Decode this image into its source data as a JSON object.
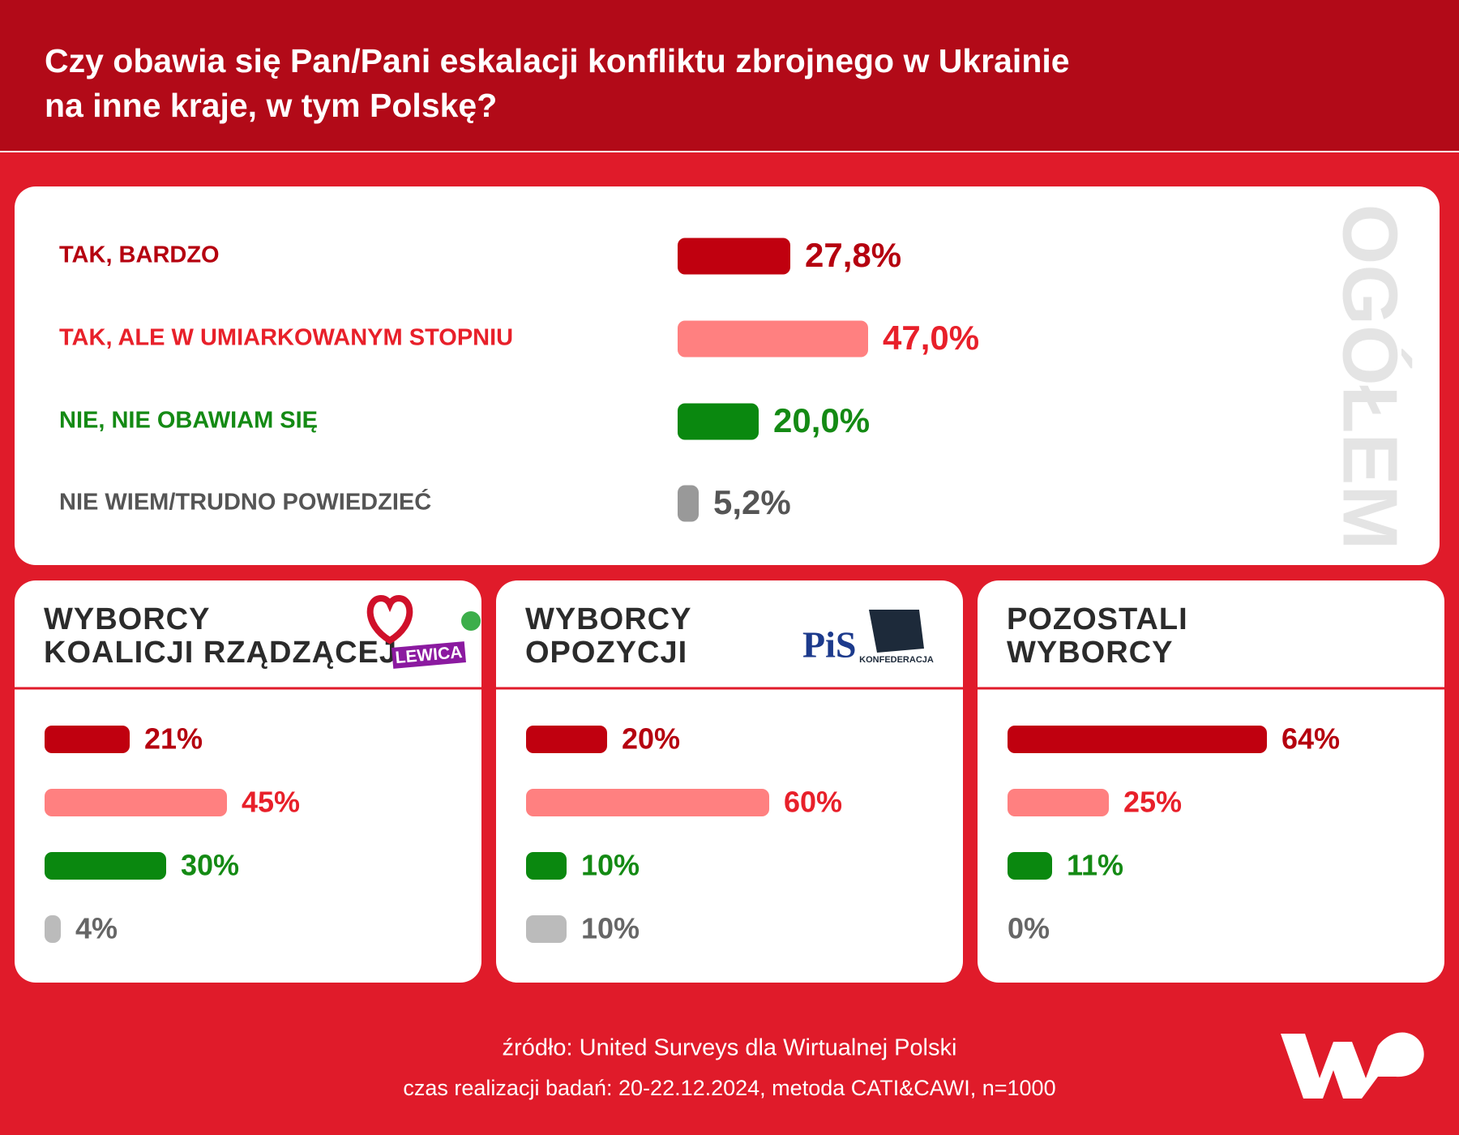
{
  "title": [
    "Czy obawia się Pan/Pani eskalacji konfliktu zbrojnego w Ukrainie",
    "na inne kraje, w tym Polskę?"
  ],
  "chart_data": [
    {
      "type": "bar",
      "side_label": "OGÓŁEM",
      "categories": [
        "TAK, BARDZO",
        "TAK, ALE W UMIARKOWANYM STOPNIU",
        "NIE, NIE OBAWIAM SIĘ",
        "NIE WIEM/TRUDNO POWIEDZIEĆ"
      ],
      "values": [
        27.8,
        47.0,
        20.0,
        5.2
      ],
      "value_labels": [
        "27,8%",
        "47,0%",
        "20,0%",
        "5,2%"
      ],
      "colors": [
        "#c0000f",
        "#ff8080",
        "#0a880f",
        "#999999"
      ],
      "label_colors": [
        "#b5000f",
        "#e8202a",
        "#148a14",
        "#555555"
      ]
    },
    {
      "type": "bar",
      "title": [
        "WYBORCY",
        "KOALICJI RZĄDZĄCEJ"
      ],
      "logos": [
        "LEWICA"
      ],
      "values": [
        21,
        45,
        30,
        4
      ],
      "value_labels": [
        "21%",
        "45%",
        "30%",
        "4%"
      ],
      "colors": [
        "#c0000f",
        "#ff8080",
        "#0a880f",
        "#bbbbbb"
      ],
      "label_colors": [
        "#b5000f",
        "#e8202a",
        "#148a14",
        "#666666"
      ]
    },
    {
      "type": "bar",
      "title": [
        "WYBORCY",
        "OPOZYCJI"
      ],
      "logos": [
        "PiS",
        "KONFEDERACJA"
      ],
      "values": [
        20,
        60,
        10,
        10
      ],
      "value_labels": [
        "20%",
        "60%",
        "10%",
        "10%"
      ],
      "colors": [
        "#c0000f",
        "#ff8080",
        "#0a880f",
        "#bbbbbb"
      ],
      "label_colors": [
        "#b5000f",
        "#e8202a",
        "#148a14",
        "#666666"
      ]
    },
    {
      "type": "bar",
      "title": [
        "POZOSTALI",
        "WYBORCY"
      ],
      "values": [
        64,
        25,
        11,
        0
      ],
      "value_labels": [
        "64%",
        "25%",
        "11%",
        "0%"
      ],
      "colors": [
        "#c0000f",
        "#ff8080",
        "#0a880f",
        "#bbbbbb"
      ],
      "label_colors": [
        "#b5000f",
        "#e8202a",
        "#148a14",
        "#666666"
      ]
    }
  ],
  "footer": [
    "źródło: United Surveys dla Wirtualnej Polski",
    "czas realizacji badań: 20-22.12.2024, metoda CATI&CAWI, n=1000"
  ]
}
